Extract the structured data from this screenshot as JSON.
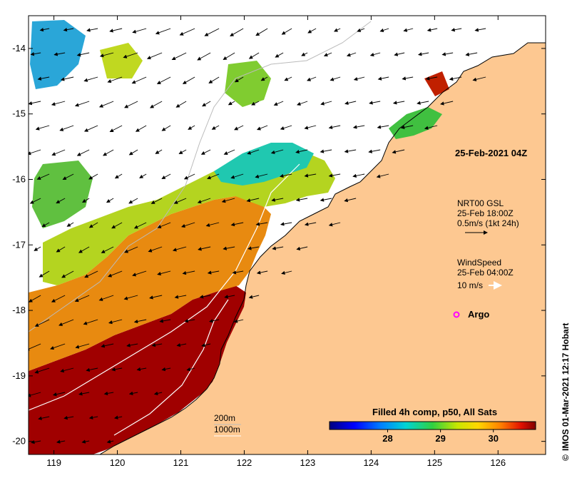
{
  "map": {
    "title_stamp": "25-Feb-2021 04Z",
    "x_ticks": [
      "119",
      "120",
      "121",
      "122",
      "123",
      "124",
      "125",
      "126"
    ],
    "y_ticks": [
      "-14",
      "-15",
      "-16",
      "-17",
      "-18",
      "-19",
      "-20"
    ],
    "x_range": [
      118.6,
      126.75
    ],
    "y_range": [
      -20.2,
      -13.5
    ],
    "colors": {
      "land": "#fdc891",
      "no_data": "#ffffff",
      "coast": "#000000",
      "bathy": "#bbbbbb",
      "warm_sst": "#a00000",
      "argo": "#ff00ff"
    },
    "legend_current": {
      "line1": "NRT00 GSL",
      "line2": "25-Feb 18:00Z",
      "line3": "0.5m/s (1kt 24h)"
    },
    "legend_wind": {
      "line1": "WindSpeed",
      "line2": "25-Feb 04:00Z",
      "line3": "10 m/s"
    },
    "argo_label": "Argo",
    "bathy_legend": [
      "200m",
      "1000m"
    ],
    "colorbar": {
      "title": "Filled 4h comp, p50, All Sats",
      "ticks": [
        "28",
        "29",
        "30"
      ],
      "tick_values": [
        28,
        29,
        30
      ],
      "range": [
        26.9,
        30.8
      ]
    },
    "credit": "IMOS 01-Mar-2021 12:17 Hobart",
    "credit_symbol": "©"
  }
}
